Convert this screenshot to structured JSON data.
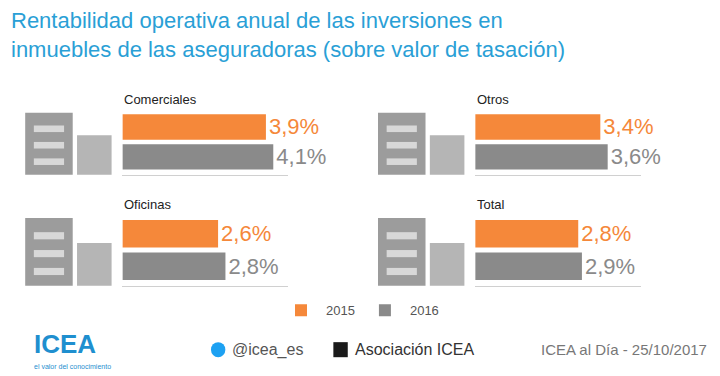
{
  "title": [
    "Rentabilidad operativa anual de las inversiones en",
    "inmuebles de las aseguradoras (sobre valor de tasación)"
  ],
  "legend": "bottom",
  "footer": {
    "logo": "ICEA",
    "tagline": "el valor del conocimiento",
    "twitter": "@icea_es",
    "linkedin": "Asociación ICEA",
    "source": "ICEA al Día - 25/10/2017"
  },
  "chart_data": [
    {
      "type": "bar",
      "orientation": "horizontal",
      "title": "Comerciales",
      "data_labels": true,
      "tick_labels": false,
      "xlim": [
        0,
        4.5
      ],
      "series": [
        {
          "name": "2015",
          "color": "#f5883a",
          "values": [
            3.9
          ],
          "value_labels": [
            "3,9%"
          ]
        },
        {
          "name": "2016",
          "color": "#8a8a8a",
          "values": [
            4.1
          ],
          "value_labels": [
            "4,1%"
          ]
        }
      ]
    },
    {
      "type": "bar",
      "orientation": "horizontal",
      "title": "Otros",
      "data_labels": true,
      "tick_labels": false,
      "xlim": [
        0,
        4.5
      ],
      "series": [
        {
          "name": "2015",
          "color": "#f5883a",
          "values": [
            3.4
          ],
          "value_labels": [
            "3,4%"
          ]
        },
        {
          "name": "2016",
          "color": "#8a8a8a",
          "values": [
            3.6
          ],
          "value_labels": [
            "3,6%"
          ]
        }
      ]
    },
    {
      "type": "bar",
      "orientation": "horizontal",
      "title": "Oficinas",
      "data_labels": true,
      "tick_labels": false,
      "xlim": [
        0,
        4.5
      ],
      "series": [
        {
          "name": "2015",
          "color": "#f5883a",
          "values": [
            2.6
          ],
          "value_labels": [
            "2,6%"
          ]
        },
        {
          "name": "2016",
          "color": "#8a8a8a",
          "values": [
            2.8
          ],
          "value_labels": [
            "2,8%"
          ]
        }
      ]
    },
    {
      "type": "bar",
      "orientation": "horizontal",
      "title": "Total",
      "data_labels": true,
      "tick_labels": false,
      "xlim": [
        0,
        4.5
      ],
      "series": [
        {
          "name": "2015",
          "color": "#f5883a",
          "values": [
            2.8
          ],
          "value_labels": [
            "2,8%"
          ]
        },
        {
          "name": "2016",
          "color": "#8a8a8a",
          "values": [
            2.9
          ],
          "value_labels": [
            "2,9%"
          ]
        }
      ]
    }
  ]
}
